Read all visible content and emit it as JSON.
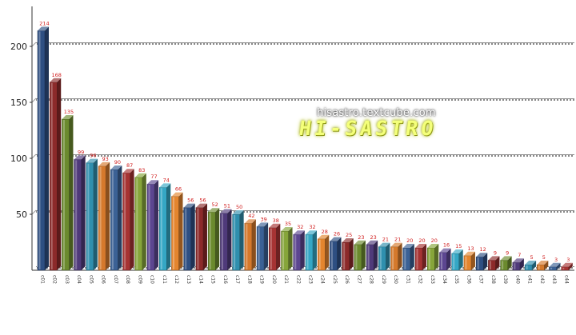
{
  "chart_data": {
    "type": "bar",
    "title": "",
    "xlabel": "",
    "ylabel": "",
    "ylim": [
      0,
      230
    ],
    "yticks": [
      50,
      100,
      150,
      200
    ],
    "grid": true,
    "bar_style": "3d",
    "categories": [
      "c01",
      "c02",
      "c03",
      "c04",
      "c05",
      "c06",
      "c07",
      "c08",
      "c09",
      "c10",
      "c11",
      "c12",
      "c13",
      "c14",
      "c15",
      "c16",
      "c17",
      "c18",
      "c19",
      "c20",
      "c21",
      "c22",
      "c23",
      "c24",
      "c25",
      "c26",
      "c27",
      "c28",
      "c29",
      "c30",
      "c31",
      "c32",
      "c33",
      "c34",
      "c35",
      "c36",
      "c37",
      "c38",
      "c39",
      "c40",
      "c41",
      "c42",
      "c43",
      "c44"
    ],
    "values": [
      214,
      168,
      135,
      99,
      96,
      93,
      90,
      87,
      83,
      77,
      74,
      66,
      56,
      56,
      52,
      51,
      50,
      42,
      39,
      38,
      35,
      32,
      32,
      28,
      26,
      25,
      23,
      23,
      21,
      21,
      20,
      20,
      20,
      16,
      15,
      13,
      12,
      9,
      9,
      7,
      5,
      5,
      3,
      3
    ],
    "colors": [
      "#2e4f82",
      "#8c2a2a",
      "#6b8a2e",
      "#4f3a7a",
      "#2f8fae",
      "#d5792c",
      "#3b6195",
      "#a63333",
      "#86a53a",
      "#5c4690",
      "#35a7c5",
      "#e4852e"
    ]
  },
  "watermark": {
    "site": "hisastro.textcube.com",
    "logo": "HI-SASTRO"
  }
}
